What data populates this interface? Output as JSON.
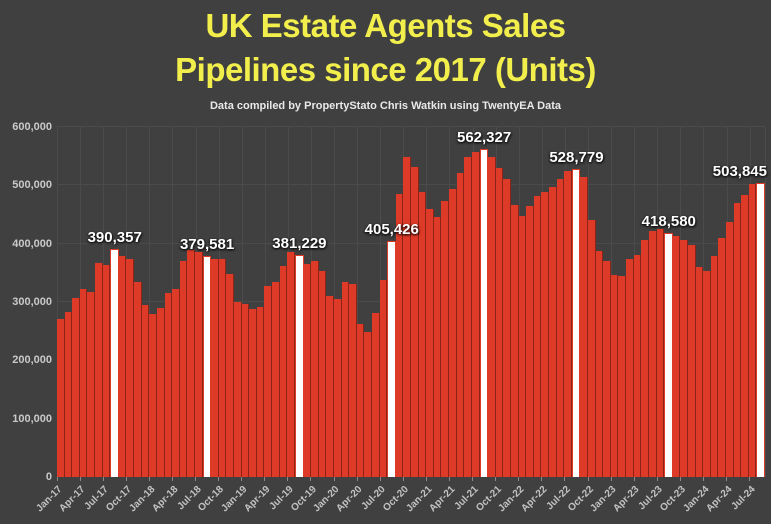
{
  "title": {
    "line1": "UK Estate Agents Sales",
    "line2": "Pipelines since 2017 (Units)"
  },
  "subtitle": "Data compiled by PropertyStato Chris Watkin using TwentyEA Data",
  "colors": {
    "background": "#404040",
    "bar": "#dd3a27",
    "highlight_bar": "#ffffff",
    "title": "#f2ef4c",
    "gridline": "#4b4b4b",
    "axis_text": "#c9c9c9",
    "annotation_text": "#ffffff"
  },
  "chart_data": {
    "type": "bar",
    "title": "UK Estate Agents Sales Pipelines since 2017 (Units)",
    "xlabel": "",
    "ylabel": "",
    "ylim": [
      0,
      600000
    ],
    "grid": true,
    "legend": false,
    "y_ticks": [
      "0",
      "100,000",
      "200,000",
      "300,000",
      "400,000",
      "500,000",
      "600,000"
    ],
    "x_ticks": [
      "Jan-17",
      "Apr-17",
      "Jul-17",
      "Oct-17",
      "Jan-18",
      "Apr-18",
      "Jul-18",
      "Oct-18",
      "Jan-19",
      "Apr-19",
      "Jul-19",
      "Oct-19",
      "Jan-20",
      "Apr-20",
      "Jul-20",
      "Oct-20",
      "Jan-21",
      "Apr-21",
      "Jul-21",
      "Oct-21",
      "Jan-22",
      "Apr-22",
      "Jul-22",
      "Oct-22",
      "Jan-23",
      "Apr-23",
      "Jul-23",
      "Oct-23",
      "Jan-24",
      "Apr-24",
      "Jul-24"
    ],
    "categories": [
      "Jan-17",
      "Feb-17",
      "Mar-17",
      "Apr-17",
      "May-17",
      "Jun-17",
      "Jul-17",
      "Aug-17",
      "Sep-17",
      "Oct-17",
      "Nov-17",
      "Dec-17",
      "Jan-18",
      "Feb-18",
      "Mar-18",
      "Apr-18",
      "May-18",
      "Jun-18",
      "Jul-18",
      "Aug-18",
      "Sep-18",
      "Oct-18",
      "Nov-18",
      "Dec-18",
      "Jan-19",
      "Feb-19",
      "Mar-19",
      "Apr-19",
      "May-19",
      "Jun-19",
      "Jul-19",
      "Aug-19",
      "Sep-19",
      "Oct-19",
      "Nov-19",
      "Dec-19",
      "Jan-20",
      "Feb-20",
      "Mar-20",
      "Apr-20",
      "May-20",
      "Jun-20",
      "Jul-20",
      "Aug-20",
      "Sep-20",
      "Oct-20",
      "Nov-20",
      "Dec-20",
      "Jan-21",
      "Feb-21",
      "Mar-21",
      "Apr-21",
      "May-21",
      "Jun-21",
      "Jul-21",
      "Aug-21",
      "Sep-21",
      "Oct-21",
      "Nov-21",
      "Dec-21",
      "Jan-22",
      "Feb-22",
      "Mar-22",
      "Apr-22",
      "May-22",
      "Jun-22",
      "Jul-22",
      "Aug-22",
      "Sep-22",
      "Oct-22",
      "Nov-22",
      "Dec-22",
      "Jan-23",
      "Feb-23",
      "Mar-23",
      "Apr-23",
      "May-23",
      "Jun-23",
      "Jul-23",
      "Aug-23",
      "Sep-23",
      "Oct-23",
      "Nov-23",
      "Dec-23",
      "Jan-24",
      "Feb-24",
      "Mar-24",
      "Apr-24",
      "May-24",
      "Jun-24",
      "Jul-24",
      "Aug-24"
    ],
    "values": [
      271000,
      283000,
      307000,
      322000,
      317000,
      367000,
      364000,
      390357,
      379000,
      374000,
      335000,
      295000,
      279000,
      289000,
      315000,
      322000,
      371000,
      389000,
      386000,
      379581,
      374000,
      373000,
      348000,
      300000,
      296000,
      288000,
      292000,
      328000,
      334000,
      362000,
      386000,
      381229,
      365000,
      371000,
      354000,
      311000,
      305000,
      334000,
      331000,
      262000,
      248000,
      282000,
      337000,
      405426,
      486000,
      548000,
      532000,
      489000,
      459000,
      445000,
      474000,
      494000,
      521000,
      548000,
      557000,
      562327,
      549000,
      529000,
      511000,
      467000,
      448000,
      464000,
      482000,
      489000,
      498000,
      511000,
      525000,
      528779,
      515000,
      440000,
      388000,
      371000,
      347000,
      344000,
      374000,
      380000,
      406000,
      422000,
      425000,
      418580,
      414000,
      406000,
      397000,
      360000,
      354000,
      379000,
      409000,
      438000,
      470000,
      483000,
      502000,
      503845
    ],
    "highlights": [
      {
        "month": "Aug-17",
        "value": 390357,
        "label": "390,357"
      },
      {
        "month": "Aug-18",
        "value": 379581,
        "label": "379,581"
      },
      {
        "month": "Aug-19",
        "value": 381229,
        "label": "381,229"
      },
      {
        "month": "Aug-20",
        "value": 405426,
        "label": "405,426"
      },
      {
        "month": "Aug-21",
        "value": 562327,
        "label": "562,327"
      },
      {
        "month": "Aug-22",
        "value": 528779,
        "label": "528,779"
      },
      {
        "month": "Aug-23",
        "value": 418580,
        "label": "418,580"
      },
      {
        "month": "Aug-24",
        "value": 503845,
        "label": "503,845"
      }
    ]
  }
}
